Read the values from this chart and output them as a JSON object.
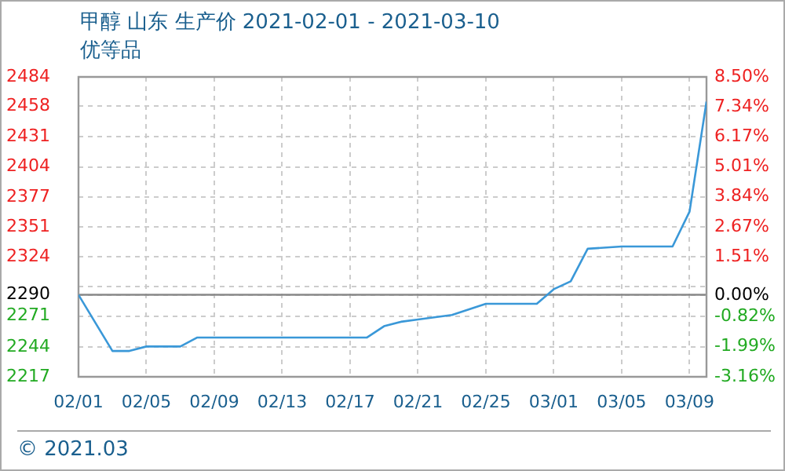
{
  "chart_data": {
    "type": "line",
    "title": "甲醇 山东 生产价 2021-02-01 - 2021-03-10",
    "subtitle": "优等品",
    "annotations": [
      "© 2021.03"
    ],
    "x": [
      "2021-02-01",
      "2021-02-02",
      "2021-02-03",
      "2021-02-04",
      "2021-02-05",
      "2021-02-07",
      "2021-02-08",
      "2021-02-18",
      "2021-02-19",
      "2021-02-20",
      "2021-02-21",
      "2021-02-23",
      "2021-02-25",
      "2021-02-28",
      "2021-03-01",
      "2021-03-02",
      "2021-03-03",
      "2021-03-05",
      "2021-03-08",
      "2021-03-09",
      "2021-03-10"
    ],
    "series": [
      {
        "color": "#3a98d8",
        "values": [
          2290,
          2265,
          2240,
          2240,
          2244,
          2244,
          2252,
          2252,
          2262,
          2266,
          2268,
          2272,
          2282,
          2282,
          2295,
          2302,
          2331,
          2333,
          2333,
          2364,
          2462
        ]
      }
    ],
    "xlim": [
      "2021-02-01",
      "2021-03-10"
    ],
    "xticks": [
      {
        "value": "2021-02-01",
        "label": "02/01"
      },
      {
        "value": "2021-02-05",
        "label": "02/05"
      },
      {
        "value": "2021-02-09",
        "label": "02/09"
      },
      {
        "value": "2021-02-13",
        "label": "02/13"
      },
      {
        "value": "2021-02-17",
        "label": "02/17"
      },
      {
        "value": "2021-02-21",
        "label": "02/21"
      },
      {
        "value": "2021-02-25",
        "label": "02/25"
      },
      {
        "value": "2021-03-01",
        "label": "03/01"
      },
      {
        "value": "2021-03-05",
        "label": "03/05"
      },
      {
        "value": "2021-03-09",
        "label": "03/09"
      }
    ],
    "ylim": [
      2217,
      2484
    ],
    "yticks": [
      2217,
      {
        "value": 2243.7,
        "label": "2244"
      },
      2271,
      2290,
      {
        "value": 2297.1,
        "label": null
      },
      {
        "value": 2323.8,
        "label": "2324"
      },
      {
        "value": 2350.5,
        "label": "2351"
      },
      {
        "value": 2377.2,
        "label": "2377"
      },
      {
        "value": 2403.9,
        "label": "2404"
      },
      {
        "value": 2430.6,
        "label": "2431"
      },
      2458,
      2484
    ],
    "y2lim": [
      -3.16,
      8.5
    ],
    "y2ticks": [
      {
        "value": -3.16,
        "label": "-3.16%"
      },
      {
        "value": -1.99,
        "label": "-1.99%"
      },
      {
        "value": -0.82,
        "label": "-0.82%"
      },
      {
        "value": 0,
        "label": "0.00%"
      },
      {
        "value": 1.51,
        "label": "1.51%"
      },
      {
        "value": 2.67,
        "label": "2.67%"
      },
      {
        "value": 3.84,
        "label": "3.84%"
      },
      {
        "value": 5.01,
        "label": "5.01%"
      },
      {
        "value": 6.17,
        "label": "6.17%"
      },
      {
        "value": 7.34,
        "label": "7.34%"
      },
      {
        "value": 8.5,
        "label": "8.50%"
      }
    ],
    "ref_lines": [
      {
        "axis": "y",
        "value": 2290,
        "color": "#888888"
      }
    ],
    "grid": true,
    "legend": false
  }
}
